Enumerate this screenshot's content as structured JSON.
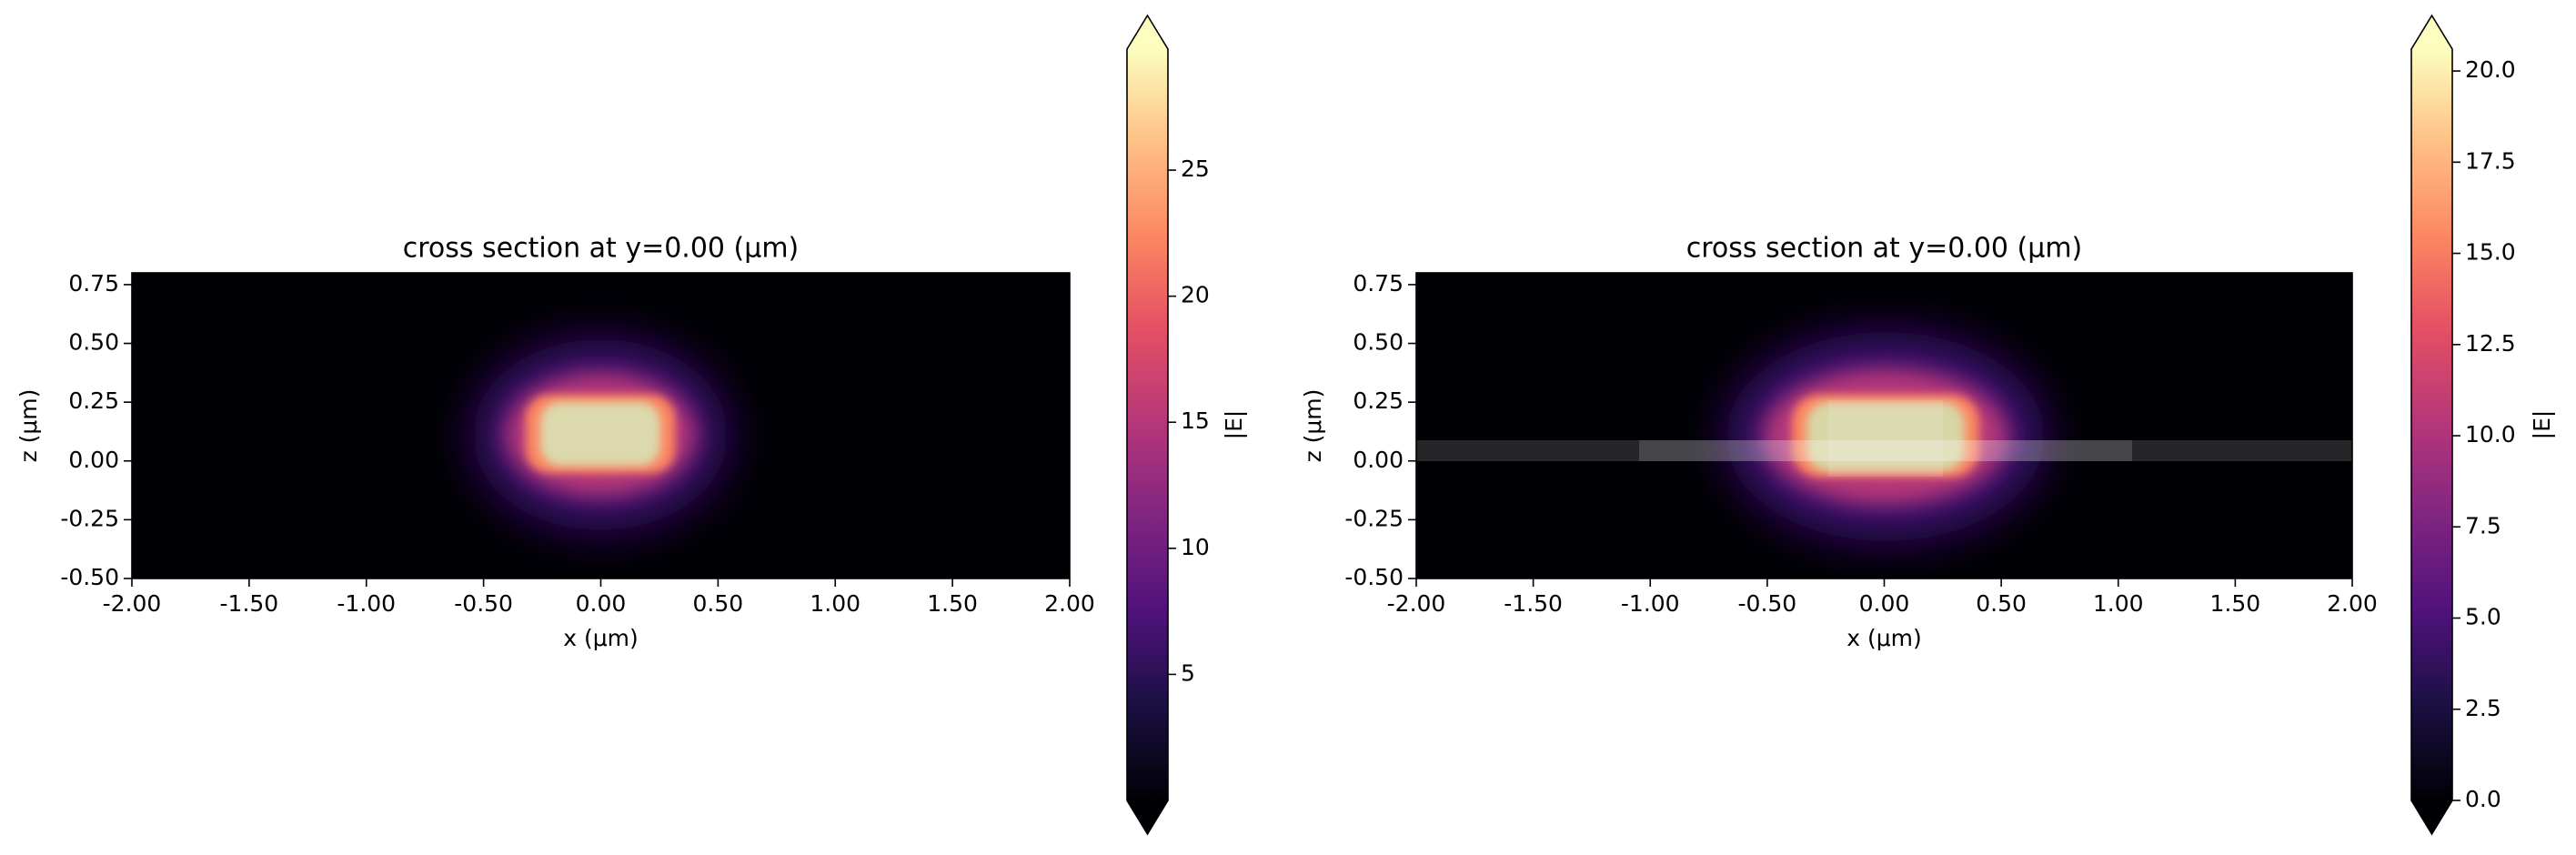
{
  "chart_data": [
    {
      "type": "heatmap",
      "title": "cross section at y=0.00 (μm)",
      "x_label": "x (μm)",
      "y_label": "z (μm)",
      "xlim": [
        -2,
        2
      ],
      "ylim": [
        -0.5,
        0.8
      ],
      "xticks": [
        {
          "value": -2,
          "label": "-2.00"
        },
        {
          "value": -1.5,
          "label": "-1.50"
        },
        {
          "value": -1,
          "label": "-1.00"
        },
        {
          "value": -0.5,
          "label": "-0.50"
        },
        {
          "value": 0,
          "label": "0.00"
        },
        {
          "value": 0.5,
          "label": "0.50"
        },
        {
          "value": 1,
          "label": "1.00"
        },
        {
          "value": 1.5,
          "label": "1.50"
        },
        {
          "value": 2,
          "label": "2.00"
        }
      ],
      "yticks": [
        {
          "value": -0.5,
          "label": "-0.50"
        },
        {
          "value": -0.25,
          "label": "-0.25"
        },
        {
          "value": 0,
          "label": "0.00"
        },
        {
          "value": 0.25,
          "label": "0.25"
        },
        {
          "value": 0.5,
          "label": "0.50"
        },
        {
          "value": 0.75,
          "label": "0.75"
        }
      ],
      "colorbar": {
        "label": "|E|",
        "cmap": "magma",
        "lim": [
          0,
          29.8
        ],
        "ticks": [
          5,
          10,
          15,
          20,
          25
        ]
      }
    },
    {
      "type": "heatmap",
      "title": "cross section at y=0.00 (μm)",
      "x_label": "x (μm)",
      "y_label": "z (μm)",
      "xlim": [
        -2,
        2
      ],
      "ylim": [
        -0.5,
        0.8
      ],
      "xticks": [
        {
          "value": -2,
          "label": "-2.00"
        },
        {
          "value": -1.5,
          "label": "-1.50"
        },
        {
          "value": -1,
          "label": "-1.00"
        },
        {
          "value": -0.5,
          "label": "-0.50"
        },
        {
          "value": 0,
          "label": "0.00"
        },
        {
          "value": 0.5,
          "label": "0.50"
        },
        {
          "value": 1,
          "label": "1.00"
        },
        {
          "value": 1.5,
          "label": "1.50"
        },
        {
          "value": 2,
          "label": "2.00"
        }
      ],
      "yticks": [
        {
          "value": -0.5,
          "label": "-0.50"
        },
        {
          "value": -0.25,
          "label": "-0.25"
        },
        {
          "value": 0,
          "label": "0.00"
        },
        {
          "value": 0.25,
          "label": "0.25"
        },
        {
          "value": 0.5,
          "label": "0.50"
        },
        {
          "value": 0.75,
          "label": "0.75"
        }
      ],
      "colorbar": {
        "label": "|E|",
        "cmap": "magma",
        "lim": [
          0,
          20.6
        ],
        "ticks": [
          {
            "value": 0,
            "label": "0.0"
          },
          {
            "value": 2.5,
            "label": "2.5"
          },
          {
            "value": 5,
            "label": "5.0"
          },
          {
            "value": 7.5,
            "label": "7.5"
          },
          {
            "value": 10,
            "label": "10.0"
          },
          {
            "value": 12.5,
            "label": "12.5"
          },
          {
            "value": 15,
            "label": "15.0"
          },
          {
            "value": 17.5,
            "label": "17.5"
          },
          {
            "value": 20,
            "label": "20.0"
          }
        ]
      }
    }
  ]
}
